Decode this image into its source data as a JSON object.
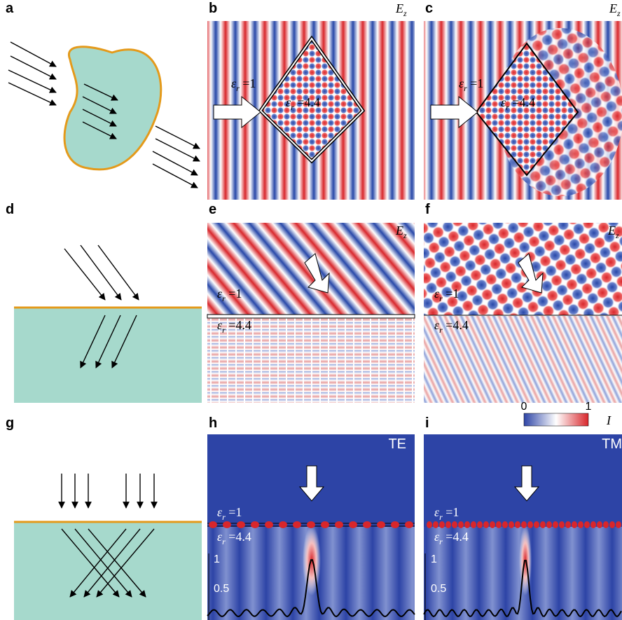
{
  "panels": [
    {
      "letter": "a"
    },
    {
      "letter": "b",
      "field": {
        "main": "E",
        "sub": "z"
      },
      "media": [
        {
          "main": "ε",
          "sub": "r",
          "tail": "=1"
        },
        {
          "main": "ε",
          "sub": "r",
          "tail": "=4.4"
        }
      ]
    },
    {
      "letter": "c",
      "field": {
        "main": "E",
        "sub": "z"
      },
      "media": [
        {
          "main": "ε",
          "sub": "r",
          "tail": "=1"
        },
        {
          "main": "ε",
          "sub": "r",
          "tail": "=4.4"
        }
      ]
    },
    {
      "letter": "d"
    },
    {
      "letter": "e",
      "field": {
        "main": "E",
        "sub": "z"
      },
      "media": [
        {
          "main": "ε",
          "sub": "r",
          "tail": "=1"
        },
        {
          "main": "ε",
          "sub": "r",
          "tail": "=4.4"
        }
      ]
    },
    {
      "letter": "f",
      "field": {
        "main": "E",
        "sub": "z"
      },
      "media": [
        {
          "main": "ε",
          "sub": "r",
          "tail": "=1"
        },
        {
          "main": "ε",
          "sub": "r",
          "tail": "=4.4"
        }
      ]
    },
    {
      "letter": "g"
    },
    {
      "letter": "h",
      "tag": "TE",
      "media": [
        {
          "main": "ε",
          "sub": "r",
          "tail": "=1"
        },
        {
          "main": "ε",
          "sub": "r",
          "tail": "=4.4"
        }
      ],
      "ticks": [
        1,
        0.5
      ]
    },
    {
      "letter": "i",
      "tag": "TM",
      "media": [
        {
          "main": "ε",
          "sub": "r",
          "tail": "=1"
        },
        {
          "main": "ε",
          "sub": "r",
          "tail": "=4.4"
        }
      ],
      "ticks": [
        1,
        0.5
      ]
    }
  ],
  "colorbar": {
    "min": "0",
    "max": "1",
    "label": "I"
  }
}
